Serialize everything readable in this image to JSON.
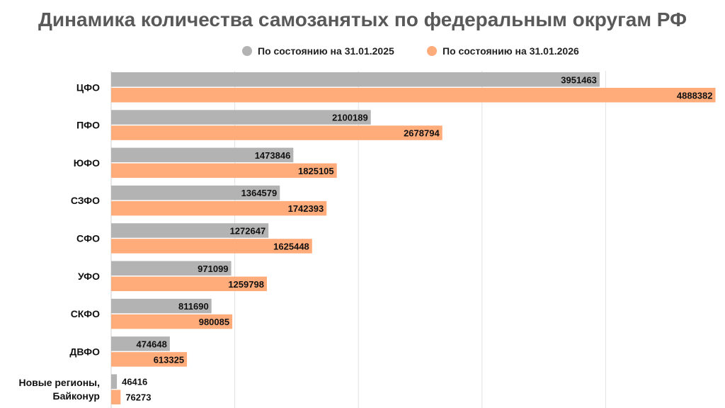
{
  "chart_data": {
    "type": "bar",
    "orientation": "horizontal",
    "title": "Динамика количества самозанятых по федеральным округам РФ",
    "categories": [
      [
        "ЦФО"
      ],
      [
        "ПФО"
      ],
      [
        "ЮФО"
      ],
      [
        "СЗФО"
      ],
      [
        "СФО"
      ],
      [
        "УФО"
      ],
      [
        "СКФО"
      ],
      [
        "ДВФО"
      ],
      [
        "Новые регионы,",
        "Байконур"
      ]
    ],
    "series": [
      {
        "name": "По состоянию на 31.01.2025",
        "color": "#b3b3b3",
        "values": [
          3951463,
          2100189,
          1473846,
          1364579,
          1272647,
          971099,
          811690,
          474648,
          46416
        ]
      },
      {
        "name": "По состоянию на 31.01.2026",
        "color": "#ffab7a",
        "values": [
          4888382,
          2678794,
          1825105,
          1742393,
          1625448,
          1259798,
          980085,
          613325,
          76273
        ]
      }
    ],
    "xlim": [
      0,
      5000000
    ],
    "legend_position": "top",
    "grid": true
  }
}
